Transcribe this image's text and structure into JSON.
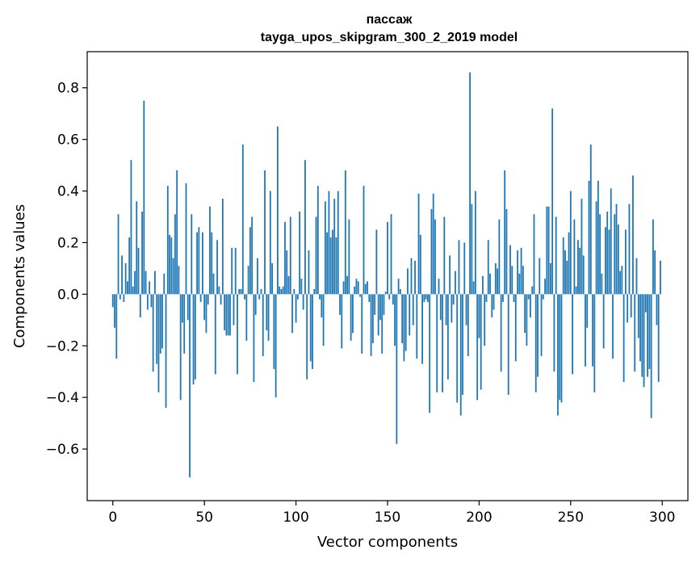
{
  "chart_data": {
    "type": "bar",
    "title_lines": [
      "пассаж",
      "tayga_upos_skipgram_300_2_2019 model"
    ],
    "xlabel": "Vector components",
    "ylabel": "Components values",
    "xlim": [
      -14,
      314
    ],
    "ylim": [
      -0.8,
      0.94
    ],
    "xticks": [
      0,
      50,
      100,
      150,
      200,
      250,
      300
    ],
    "xtick_labels": [
      "0",
      "50",
      "100",
      "150",
      "200",
      "250",
      "300"
    ],
    "yticks": [
      -0.6,
      -0.4,
      -0.2,
      0.0,
      0.2,
      0.4,
      0.6,
      0.8
    ],
    "ytick_labels": [
      "−0.6",
      "−0.4",
      "−0.2",
      "0.0",
      "0.2",
      "0.4",
      "0.6",
      "0.8"
    ],
    "bar_color": "#1f77b4",
    "grid": false,
    "values": [
      -0.05,
      -0.13,
      -0.25,
      0.31,
      -0.02,
      0.15,
      -0.03,
      0.12,
      0.05,
      0.22,
      0.52,
      0.03,
      0.09,
      0.36,
      0.18,
      -0.09,
      0.32,
      0.75,
      0.09,
      -0.06,
      0.05,
      -0.05,
      -0.3,
      0.09,
      -0.27,
      -0.38,
      -0.23,
      -0.21,
      0.08,
      -0.44,
      0.42,
      0.23,
      0.22,
      0.14,
      0.31,
      0.48,
      0.11,
      -0.41,
      -0.11,
      -0.23,
      0.43,
      -0.1,
      -0.71,
      0.31,
      -0.35,
      -0.33,
      0.24,
      0.26,
      -0.03,
      0.24,
      -0.1,
      -0.15,
      -0.04,
      0.34,
      0.24,
      0.08,
      -0.31,
      0.21,
      0.03,
      -0.04,
      0.37,
      -0.14,
      -0.16,
      -0.16,
      -0.16,
      0.18,
      -0.12,
      0.18,
      -0.31,
      0.02,
      0.02,
      0.58,
      -0.02,
      -0.18,
      0.11,
      0.26,
      0.3,
      -0.34,
      -0.08,
      0.14,
      -0.02,
      0.02,
      -0.24,
      0.48,
      -0.14,
      -0.18,
      0.4,
      0.12,
      -0.29,
      -0.4,
      0.65,
      0.03,
      0.02,
      0.03,
      0.28,
      0.17,
      0.07,
      0.3,
      -0.15,
      0.02,
      -0.11,
      -0.02,
      0.32,
      0.06,
      -0.06,
      0.52,
      -0.33,
      0.17,
      -0.26,
      -0.29,
      0.02,
      0.3,
      0.42,
      -0.02,
      -0.09,
      -0.2,
      0.36,
      0.24,
      0.4,
      0.22,
      0.25,
      0.37,
      0.22,
      0.4,
      -0.08,
      -0.21,
      0.05,
      0.48,
      0.07,
      0.29,
      -0.18,
      -0.15,
      0.03,
      0.06,
      0.05,
      -0.01,
      -0.23,
      0.42,
      0.04,
      0.05,
      -0.03,
      -0.24,
      -0.19,
      -0.08,
      0.25,
      -0.16,
      -0.1,
      -0.23,
      -0.08,
      0.01,
      0.28,
      -0.02,
      0.31,
      -0.04,
      -0.2,
      -0.58,
      0.06,
      0.02,
      -0.19,
      -0.26,
      -0.22,
      0.1,
      -0.16,
      0.14,
      -0.12,
      0.13,
      -0.25,
      0.39,
      0.23,
      -0.27,
      -0.03,
      -0.02,
      -0.03,
      -0.46,
      0.33,
      0.39,
      0.29,
      -0.38,
      0.06,
      -0.1,
      -0.38,
      0.3,
      -0.12,
      -0.33,
      0.15,
      -0.11,
      -0.04,
      0.09,
      -0.42,
      0.21,
      -0.47,
      -0.39,
      0.2,
      -0.12,
      -0.24,
      0.86,
      0.35,
      0.05,
      0.4,
      -0.41,
      -0.17,
      -0.37,
      0.07,
      -0.2,
      -0.03,
      0.21,
      0.08,
      -0.09,
      -0.06,
      0.12,
      0.1,
      0.29,
      -0.3,
      -0.03,
      0.48,
      0.33,
      -0.39,
      0.19,
      0.11,
      -0.03,
      -0.26,
      0.17,
      0.08,
      0.18,
      0.11,
      -0.15,
      -0.2,
      -0.02,
      -0.09,
      0.03,
      0.31,
      -0.38,
      -0.32,
      0.14,
      -0.24,
      -0.02,
      0.06,
      0.34,
      0.34,
      0.12,
      0.72,
      -0.3,
      0.3,
      -0.47,
      -0.41,
      -0.42,
      0.22,
      0.17,
      0.13,
      0.24,
      0.4,
      -0.31,
      0.29,
      0.03,
      0.21,
      0.18,
      0.37,
      0.15,
      -0.28,
      -0.13,
      0.44,
      0.58,
      -0.28,
      -0.38,
      0.36,
      0.44,
      0.31,
      0.08,
      -0.21,
      0.26,
      0.32,
      0.25,
      0.41,
      -0.25,
      0.31,
      0.35,
      0.27,
      0.09,
      0.11,
      -0.34,
      0.25,
      -0.11,
      0.35,
      -0.09,
      0.46,
      -0.3,
      0.14,
      -0.17,
      -0.26,
      -0.32,
      -0.36,
      -0.07,
      -0.32,
      -0.29,
      -0.48,
      0.29,
      0.17,
      -0.12,
      -0.34,
      0.13
    ]
  }
}
